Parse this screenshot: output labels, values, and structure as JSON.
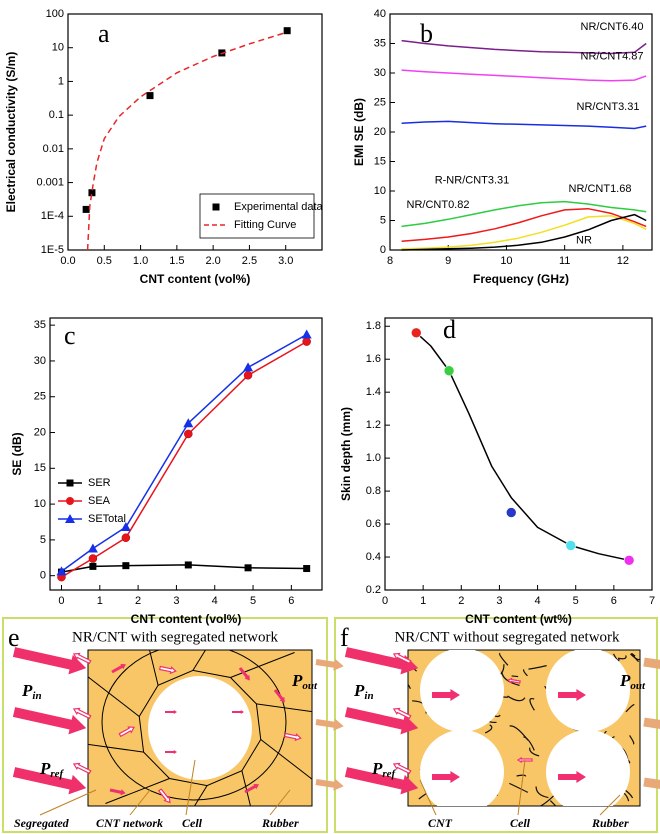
{
  "chart_data": [
    {
      "type": "scatter",
      "panel": "a",
      "xlabel": "CNT content (vol%)",
      "ylabel": "Electrical conductivity (S/m)",
      "xlim": [
        0,
        3.5
      ],
      "ylim": [
        1e-05,
        100
      ],
      "ylog": true,
      "xticks": [
        {
          "value": 0,
          "label": "0.0"
        },
        0.5,
        {
          "value": 1,
          "label": "1.0"
        },
        1.5,
        {
          "value": 2,
          "label": "2.0"
        },
        2.5,
        {
          "value": 3,
          "label": "3.0"
        }
      ],
      "yticks": [
        {
          "value": 1e-05,
          "label": "1E-5"
        },
        {
          "value": 0.0001,
          "label": "1E-4"
        },
        0.001,
        0.01,
        0.1,
        1,
        10,
        100
      ],
      "legend": "lower right",
      "series": [
        {
          "name": "Experimental data",
          "type": "scatter",
          "marker": "square",
          "color": "#000000",
          "x": [
            0.25,
            0.33,
            1.13,
            2.12,
            3.02
          ],
          "values": [
            0.00016,
            0.0005,
            0.38,
            7,
            32
          ]
        },
        {
          "name": "Fitting Curve",
          "type": "line",
          "dash": true,
          "color": "#e8272b",
          "x": [
            0.27,
            0.3,
            0.35,
            0.4,
            0.5,
            0.7,
            1,
            1.5,
            2,
            2.5,
            3
          ],
          "values": [
            1e-05,
            0.0002,
            0.001,
            0.004,
            0.02,
            0.09,
            0.35,
            1.8,
            5.5,
            13,
            28
          ]
        }
      ]
    },
    {
      "type": "line",
      "panel": "b",
      "xlabel": "Frequency (GHz)",
      "ylabel": "EMI SE (dB)",
      "xlim": [
        8,
        12.5
      ],
      "ylim": [
        0,
        40
      ],
      "xticks": [
        8,
        9,
        10,
        11,
        12
      ],
      "yticks": [
        0,
        5,
        10,
        15,
        20,
        25,
        30,
        35,
        40
      ],
      "x": [
        8.2,
        8.6,
        9.0,
        9.4,
        9.8,
        10.2,
        10.6,
        11.0,
        11.4,
        11.8,
        12.2,
        12.4
      ],
      "series": [
        {
          "name": "NR/CNT6.40",
          "color": "#7b1f8c",
          "values": [
            35.5,
            35,
            34.6,
            34.3,
            34,
            33.8,
            33.6,
            33.5,
            33.4,
            33.3,
            33.5,
            35
          ]
        },
        {
          "name": "NR/CNT4.87",
          "color": "#f040f0",
          "values": [
            30.5,
            30.2,
            30,
            29.8,
            29.6,
            29.4,
            29.2,
            29,
            28.8,
            28.7,
            28.8,
            29.5
          ]
        },
        {
          "name": "NR/CNT3.31",
          "color": "#1a2ee0",
          "values": [
            21.5,
            21.7,
            21.8,
            21.6,
            21.4,
            21.3,
            21.2,
            21.1,
            21,
            20.8,
            20.6,
            21
          ]
        },
        {
          "name": "NR/CNT1.68",
          "color": "#2ecc40",
          "values": [
            4,
            4.5,
            5.2,
            6,
            6.8,
            7.5,
            8,
            8.2,
            7.8,
            7.2,
            6.8,
            6.5
          ]
        },
        {
          "name": "R-NR/CNT3.31",
          "color": "#f01818",
          "values": [
            1.5,
            1.8,
            2.2,
            2.8,
            3.6,
            4.6,
            5.8,
            6.8,
            7,
            6.2,
            4.8,
            4
          ]
        },
        {
          "name": "NR/CNT0.82",
          "color": "#f0e020",
          "values": [
            0.2,
            0.3,
            0.5,
            0.8,
            1.3,
            2,
            3,
            4.2,
            5.6,
            5.8,
            4.5,
            3.5
          ]
        },
        {
          "name": "NR",
          "color": "#000000",
          "values": [
            0,
            0.1,
            0.2,
            0.3,
            0.5,
            0.8,
            1.3,
            2.2,
            3.4,
            5,
            6,
            5
          ]
        }
      ]
    },
    {
      "type": "line",
      "panel": "c",
      "xlabel": "CNT content (vol%)",
      "ylabel": "SE (dB)",
      "xlim": [
        -0.3,
        6.8
      ],
      "ylim": [
        -2,
        36
      ],
      "xticks": [
        0,
        1,
        2,
        3,
        4,
        5,
        6
      ],
      "yticks": [
        0,
        5,
        10,
        15,
        20,
        25,
        30,
        35
      ],
      "legend": "center left",
      "series": [
        {
          "name": "SER",
          "marker": "square",
          "color": "#000000",
          "x": [
            0,
            0.82,
            1.68,
            3.31,
            4.87,
            6.4
          ],
          "values": [
            0.5,
            1.3,
            1.4,
            1.5,
            1.1,
            1.0
          ]
        },
        {
          "name": "SEA",
          "marker": "circle",
          "color": "#e8141c",
          "x": [
            0,
            0.82,
            1.68,
            3.31,
            4.87,
            6.4
          ],
          "values": [
            -0.2,
            2.4,
            5.3,
            19.8,
            28,
            32.7
          ]
        },
        {
          "name": "SETotal",
          "marker": "triangle",
          "color": "#1530e8",
          "x": [
            0,
            0.82,
            1.68,
            3.31,
            4.87,
            6.4
          ],
          "values": [
            0.6,
            3.8,
            6.8,
            21.3,
            29.1,
            33.7
          ]
        }
      ]
    },
    {
      "type": "scatter",
      "panel": "d",
      "xlabel": "CNT content (wt%)",
      "ylabel": "Skin depth (mm)",
      "xlim": [
        0,
        7
      ],
      "ylim": [
        0.2,
        1.85
      ],
      "xticks": [
        0,
        1,
        2,
        3,
        4,
        5,
        6,
        7
      ],
      "yticks": [
        0.2,
        0.4,
        0.6,
        0.8,
        {
          "value": 1,
          "label": "1.0"
        },
        1.2,
        1.4,
        1.6,
        1.8
      ],
      "series": [
        {
          "type": "line",
          "color": "#000000",
          "x": [
            0.82,
            1.2,
            1.68,
            2.2,
            2.8,
            3.31,
            4,
            4.87,
            5.6,
            6.4
          ],
          "values": [
            1.76,
            1.68,
            1.53,
            1.27,
            0.95,
            0.76,
            0.58,
            0.47,
            0.42,
            0.38
          ]
        },
        {
          "type": "scatter",
          "marker": "ball",
          "x": [
            0.82,
            1.68,
            3.31,
            4.87,
            6.4
          ],
          "values": [
            1.76,
            1.53,
            0.67,
            0.47,
            0.38
          ],
          "colors": [
            "#e8241c",
            "#38d040",
            "#2838c8",
            "#50e0f0",
            "#f030f0"
          ]
        }
      ]
    }
  ],
  "diagrams": [
    {
      "panel": "e",
      "title": "NR/CNT with segregated network",
      "power": [
        {
          "symbol": "P",
          "sub": "in"
        },
        {
          "symbol": "P",
          "sub": "ref"
        },
        {
          "symbol": "P",
          "sub": "out"
        }
      ],
      "labels": [
        "Segregated",
        "CNT network",
        "Cell",
        "Rubber"
      ]
    },
    {
      "panel": "f",
      "title": "NR/CNT without segregated network",
      "power": [
        {
          "symbol": "P",
          "sub": "in"
        },
        {
          "symbol": "P",
          "sub": "ref"
        },
        {
          "symbol": "P",
          "sub": "out"
        }
      ],
      "labels": [
        "CNT",
        "Cell",
        "Rubber"
      ]
    }
  ]
}
